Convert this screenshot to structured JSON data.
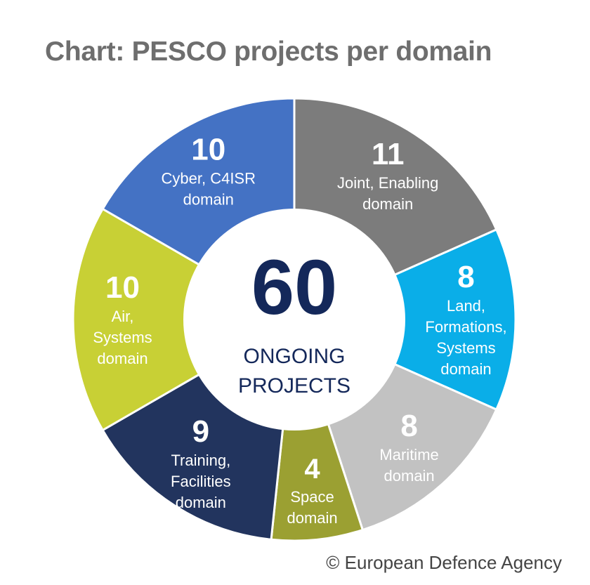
{
  "title": "Chart: PESCO projects per domain",
  "credit": "© European Defence Agency",
  "center": {
    "total": "60",
    "line1": "ONGOING",
    "line2": "PROJECTS",
    "color": "#14285a"
  },
  "chart_data": {
    "type": "pie",
    "variant": "donut",
    "title": "Chart: PESCO projects per domain",
    "total": 60,
    "segments": [
      {
        "value": 11,
        "label": [
          "Joint, Enabling",
          "domain"
        ],
        "color": "#7c7c7c"
      },
      {
        "value": 8,
        "label": [
          "Land,",
          "Formations,",
          "Systems",
          "domain"
        ],
        "color": "#0aaee8"
      },
      {
        "value": 8,
        "label": [
          "Maritime",
          "domain"
        ],
        "color": "#c2c2c2"
      },
      {
        "value": 4,
        "label": [
          "Space",
          "domain"
        ],
        "color": "#9ba032"
      },
      {
        "value": 9,
        "label": [
          "Training,",
          "Facilities",
          "domain"
        ],
        "color": "#22345e"
      },
      {
        "value": 10,
        "label": [
          "Air,",
          "Systems",
          "domain"
        ],
        "color": "#c8d035"
      },
      {
        "value": 10,
        "label": [
          "Cyber, C4ISR",
          "domain"
        ],
        "color": "#4472c4"
      }
    ]
  }
}
